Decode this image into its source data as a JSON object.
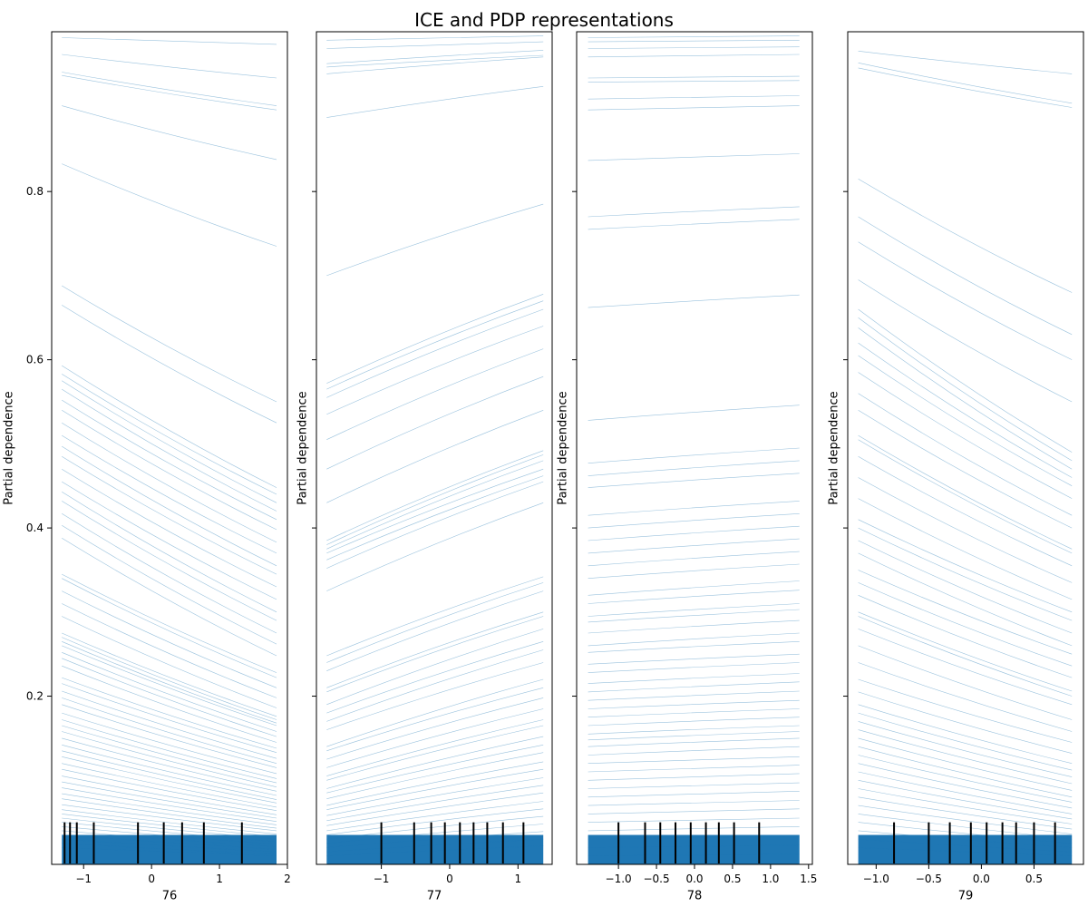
{
  "figure": {
    "title": "ICE and PDP representations",
    "background": "#ffffff",
    "line_color": "#1f77b4",
    "rug_color": "#000000"
  },
  "chart_data": [
    {
      "type": "line",
      "kind": "ice",
      "xlabel": "76",
      "ylabel": "Partial dependence",
      "xlim": [
        -1.47,
        2.0
      ],
      "ylim": [
        0.0,
        0.99
      ],
      "xticks": [
        -1,
        0,
        1,
        2
      ],
      "xtick_labels": [
        "−1",
        "0",
        "1",
        "2"
      ],
      "yticks": [
        0.2,
        0.4,
        0.6,
        0.8
      ],
      "ytick_labels": [
        "0.2",
        "0.4",
        "0.6",
        "0.8"
      ],
      "show_yticklabels": true,
      "x_range": [
        -1.32,
        1.84
      ],
      "ice_lines": [
        [
          0.983,
          0.975
        ],
        [
          0.963,
          0.935
        ],
        [
          0.942,
          0.902
        ],
        [
          0.938,
          0.897
        ],
        [
          0.902,
          0.838
        ],
        [
          0.833,
          0.735
        ],
        [
          0.688,
          0.55
        ],
        [
          0.665,
          0.525
        ],
        [
          0.593,
          0.448
        ],
        [
          0.583,
          0.44
        ],
        [
          0.575,
          0.43
        ],
        [
          0.565,
          0.42
        ],
        [
          0.552,
          0.41
        ],
        [
          0.54,
          0.398
        ],
        [
          0.525,
          0.383
        ],
        [
          0.51,
          0.37
        ],
        [
          0.497,
          0.355
        ],
        [
          0.485,
          0.345
        ],
        [
          0.47,
          0.33
        ],
        [
          0.455,
          0.315
        ],
        [
          0.443,
          0.3
        ],
        [
          0.432,
          0.29
        ],
        [
          0.417,
          0.275
        ],
        [
          0.403,
          0.262
        ],
        [
          0.388,
          0.248
        ],
        [
          0.345,
          0.228
        ],
        [
          0.34,
          0.222
        ],
        [
          0.325,
          0.21
        ],
        [
          0.31,
          0.198
        ],
        [
          0.295,
          0.186
        ],
        [
          0.275,
          0.176
        ],
        [
          0.27,
          0.172
        ],
        [
          0.265,
          0.168
        ],
        [
          0.26,
          0.165
        ],
        [
          0.252,
          0.158
        ],
        [
          0.245,
          0.152
        ],
        [
          0.236,
          0.145
        ],
        [
          0.222,
          0.138
        ],
        [
          0.215,
          0.133
        ],
        [
          0.206,
          0.126
        ],
        [
          0.198,
          0.12
        ],
        [
          0.19,
          0.115
        ],
        [
          0.18,
          0.108
        ],
        [
          0.172,
          0.102
        ],
        [
          0.165,
          0.097
        ],
        [
          0.158,
          0.092
        ],
        [
          0.15,
          0.087
        ],
        [
          0.142,
          0.082
        ],
        [
          0.135,
          0.077
        ],
        [
          0.128,
          0.073
        ],
        [
          0.12,
          0.068
        ],
        [
          0.113,
          0.064
        ],
        [
          0.105,
          0.059
        ],
        [
          0.098,
          0.055
        ],
        [
          0.091,
          0.051
        ],
        [
          0.084,
          0.047
        ],
        [
          0.078,
          0.043
        ],
        [
          0.071,
          0.04
        ],
        [
          0.065,
          0.036
        ],
        [
          0.06,
          0.033
        ],
        [
          0.055,
          0.03
        ],
        [
          0.05,
          0.027
        ],
        [
          0.045,
          0.024
        ],
        [
          0.04,
          0.021
        ],
        [
          0.035,
          0.018
        ],
        [
          0.03,
          0.015
        ],
        [
          0.025,
          0.012
        ],
        [
          0.02,
          0.01
        ]
      ],
      "rug_x": [
        -1.28,
        -1.2,
        -1.1,
        -0.85,
        -0.2,
        0.18,
        0.45,
        0.77,
        1.33
      ]
    },
    {
      "type": "line",
      "kind": "ice",
      "xlabel": "77",
      "ylabel": "Partial dependence",
      "xlim": [
        -1.95,
        1.5
      ],
      "ylim": [
        0.0,
        0.99
      ],
      "xticks": [
        -1,
        0,
        1
      ],
      "xtick_labels": [
        "−1",
        "0",
        "1"
      ],
      "yticks": [
        0.2,
        0.4,
        0.6,
        0.8
      ],
      "ytick_labels": [
        "0.2",
        "0.4",
        "0.6",
        "0.8"
      ],
      "show_yticklabels": false,
      "x_range": [
        -1.8,
        1.37
      ],
      "ice_lines": [
        [
          0.98,
          0.985
        ],
        [
          0.97,
          0.978
        ],
        [
          0.952,
          0.968
        ],
        [
          0.948,
          0.962
        ],
        [
          0.94,
          0.96
        ],
        [
          0.888,
          0.925
        ],
        [
          0.7,
          0.785
        ],
        [
          0.572,
          0.678
        ],
        [
          0.565,
          0.67
        ],
        [
          0.555,
          0.66
        ],
        [
          0.535,
          0.64
        ],
        [
          0.505,
          0.613
        ],
        [
          0.47,
          0.58
        ],
        [
          0.43,
          0.54
        ],
        [
          0.385,
          0.492
        ],
        [
          0.38,
          0.487
        ],
        [
          0.375,
          0.48
        ],
        [
          0.37,
          0.47
        ],
        [
          0.362,
          0.462
        ],
        [
          0.352,
          0.455
        ],
        [
          0.325,
          0.43
        ],
        [
          0.248,
          0.342
        ],
        [
          0.24,
          0.335
        ],
        [
          0.23,
          0.325
        ],
        [
          0.21,
          0.3
        ],
        [
          0.205,
          0.295
        ],
        [
          0.19,
          0.28
        ],
        [
          0.18,
          0.265
        ],
        [
          0.17,
          0.255
        ],
        [
          0.16,
          0.24
        ],
        [
          0.14,
          0.22
        ],
        [
          0.135,
          0.21
        ],
        [
          0.125,
          0.198
        ],
        [
          0.115,
          0.185
        ],
        [
          0.105,
          0.172
        ],
        [
          0.1,
          0.165
        ],
        [
          0.09,
          0.152
        ],
        [
          0.085,
          0.142
        ],
        [
          0.078,
          0.133
        ],
        [
          0.07,
          0.122
        ],
        [
          0.065,
          0.113
        ],
        [
          0.058,
          0.103
        ],
        [
          0.052,
          0.094
        ],
        [
          0.046,
          0.085
        ],
        [
          0.04,
          0.075
        ],
        [
          0.035,
          0.066
        ],
        [
          0.03,
          0.057
        ],
        [
          0.025,
          0.048
        ],
        [
          0.02,
          0.039
        ],
        [
          0.015,
          0.03
        ],
        [
          0.01,
          0.022
        ]
      ],
      "rug_x": [
        -1.0,
        -0.52,
        -0.27,
        -0.07,
        0.15,
        0.35,
        0.55,
        0.78,
        1.08
      ]
    },
    {
      "type": "line",
      "kind": "ice",
      "xlabel": "78",
      "ylabel": "Partial dependence",
      "xlim": [
        -1.55,
        1.55
      ],
      "ylim": [
        0.0,
        0.99
      ],
      "xticks": [
        -1.0,
        -0.5,
        0.0,
        0.5,
        1.0,
        1.5
      ],
      "xtick_labels": [
        "−1.0",
        "−0.5",
        "0.0",
        "0.5",
        "1.0",
        "1.5"
      ],
      "yticks": [
        0.2,
        0.4,
        0.6,
        0.8
      ],
      "ytick_labels": [
        "0.2",
        "0.4",
        "0.6",
        "0.8"
      ],
      "show_yticklabels": false,
      "x_range": [
        -1.4,
        1.38
      ],
      "ice_lines": [
        [
          0.983,
          0.985
        ],
        [
          0.978,
          0.98
        ],
        [
          0.97,
          0.972
        ],
        [
          0.96,
          0.963
        ],
        [
          0.935,
          0.937
        ],
        [
          0.93,
          0.932
        ],
        [
          0.91,
          0.914
        ],
        [
          0.897,
          0.902
        ],
        [
          0.837,
          0.845
        ],
        [
          0.77,
          0.782
        ],
        [
          0.755,
          0.767
        ],
        [
          0.662,
          0.677
        ],
        [
          0.528,
          0.546
        ],
        [
          0.477,
          0.495
        ],
        [
          0.462,
          0.48
        ],
        [
          0.448,
          0.465
        ],
        [
          0.415,
          0.432
        ],
        [
          0.4,
          0.417
        ],
        [
          0.385,
          0.402
        ],
        [
          0.37,
          0.387
        ],
        [
          0.355,
          0.372
        ],
        [
          0.34,
          0.357
        ],
        [
          0.32,
          0.337
        ],
        [
          0.31,
          0.326
        ],
        [
          0.295,
          0.31
        ],
        [
          0.288,
          0.303
        ],
        [
          0.275,
          0.29
        ],
        [
          0.26,
          0.275
        ],
        [
          0.252,
          0.265
        ],
        [
          0.238,
          0.25
        ],
        [
          0.228,
          0.24
        ],
        [
          0.215,
          0.227
        ],
        [
          0.205,
          0.217
        ],
        [
          0.195,
          0.206
        ],
        [
          0.185,
          0.195
        ],
        [
          0.175,
          0.185
        ],
        [
          0.165,
          0.175
        ],
        [
          0.155,
          0.165
        ],
        [
          0.148,
          0.158
        ],
        [
          0.14,
          0.15
        ],
        [
          0.13,
          0.14
        ],
        [
          0.12,
          0.128
        ],
        [
          0.11,
          0.118
        ],
        [
          0.1,
          0.108
        ],
        [
          0.09,
          0.097
        ],
        [
          0.08,
          0.087
        ],
        [
          0.07,
          0.076
        ],
        [
          0.06,
          0.066
        ],
        [
          0.05,
          0.055
        ],
        [
          0.04,
          0.045
        ],
        [
          0.03,
          0.034
        ],
        [
          0.02,
          0.023
        ],
        [
          0.01,
          0.012
        ]
      ],
      "rug_x": [
        -1.0,
        -0.65,
        -0.45,
        -0.25,
        -0.05,
        0.15,
        0.32,
        0.52,
        0.85
      ]
    },
    {
      "type": "line",
      "kind": "ice",
      "xlabel": "79",
      "ylabel": "Partial dependence",
      "xlim": [
        -1.27,
        0.97
      ],
      "ylim": [
        0.0,
        0.99
      ],
      "xticks": [
        -1.0,
        -0.5,
        0.0,
        0.5
      ],
      "xtick_labels": [
        "−1.0",
        "−0.5",
        "0.0",
        "0.5"
      ],
      "yticks": [
        0.2,
        0.4,
        0.6,
        0.8
      ],
      "ytick_labels": [
        "0.2",
        "0.4",
        "0.6",
        "0.8"
      ],
      "show_yticklabels": false,
      "x_range": [
        -1.17,
        0.86
      ],
      "ice_lines": [
        [
          0.967,
          0.94
        ],
        [
          0.953,
          0.905
        ],
        [
          0.947,
          0.9
        ],
        [
          0.815,
          0.68
        ],
        [
          0.77,
          0.63
        ],
        [
          0.74,
          0.6
        ],
        [
          0.695,
          0.55
        ],
        [
          0.66,
          0.49
        ],
        [
          0.65,
          0.48
        ],
        [
          0.638,
          0.47
        ],
        [
          0.62,
          0.46
        ],
        [
          0.605,
          0.45
        ],
        [
          0.585,
          0.435
        ],
        [
          0.56,
          0.415
        ],
        [
          0.54,
          0.4
        ],
        [
          0.51,
          0.375
        ],
        [
          0.505,
          0.37
        ],
        [
          0.485,
          0.355
        ],
        [
          0.46,
          0.335
        ],
        [
          0.435,
          0.315
        ],
        [
          0.41,
          0.3
        ],
        [
          0.4,
          0.29
        ],
        [
          0.385,
          0.275
        ],
        [
          0.37,
          0.26
        ],
        [
          0.35,
          0.25
        ],
        [
          0.335,
          0.236
        ],
        [
          0.32,
          0.222
        ],
        [
          0.3,
          0.206
        ],
        [
          0.295,
          0.2
        ],
        [
          0.28,
          0.19
        ],
        [
          0.26,
          0.172
        ],
        [
          0.24,
          0.158
        ],
        [
          0.22,
          0.145
        ],
        [
          0.205,
          0.132
        ],
        [
          0.19,
          0.12
        ],
        [
          0.18,
          0.112
        ],
        [
          0.17,
          0.104
        ],
        [
          0.16,
          0.096
        ],
        [
          0.15,
          0.088
        ],
        [
          0.14,
          0.08
        ],
        [
          0.13,
          0.074
        ],
        [
          0.12,
          0.067
        ],
        [
          0.11,
          0.06
        ],
        [
          0.1,
          0.054
        ],
        [
          0.09,
          0.048
        ],
        [
          0.08,
          0.042
        ],
        [
          0.07,
          0.036
        ],
        [
          0.06,
          0.03
        ],
        [
          0.05,
          0.025
        ],
        [
          0.04,
          0.02
        ],
        [
          0.03,
          0.015
        ],
        [
          0.02,
          0.01
        ]
      ],
      "rug_x": [
        -0.83,
        -0.5,
        -0.3,
        -0.1,
        0.05,
        0.2,
        0.33,
        0.5,
        0.7
      ]
    }
  ]
}
